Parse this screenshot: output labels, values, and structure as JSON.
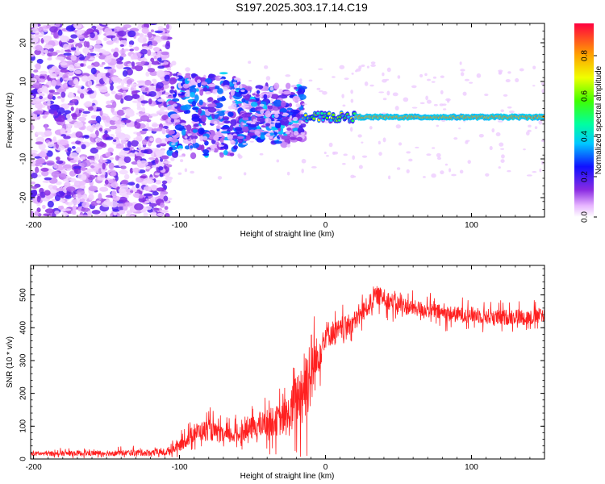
{
  "figure_title": "S197.2025.303.17.14.C19",
  "chart_data": [
    {
      "type": "heatmap",
      "name": "spectrogram",
      "xlabel": "Height of straight line (km)",
      "ylabel": "Frequency (Hz)",
      "xlim": [
        -202,
        150
      ],
      "ylim": [
        -25,
        25
      ],
      "xticks": [
        -200,
        -100,
        0,
        100
      ],
      "yticks": [
        -20,
        -10,
        0,
        10,
        20
      ],
      "colorbar": {
        "label": "Normalized spectral amplitude",
        "range": [
          0,
          0.96
        ],
        "ticks": [
          "0.0",
          "0.2",
          "0.4",
          "0.6",
          "0.8"
        ]
      },
      "ridge": {
        "x_start": -15,
        "x_end": 150,
        "frequency_hz": 0.8,
        "amplitude": 0.9
      },
      "regions": [
        {
          "x_range": [
            -202,
            -107
          ],
          "frequency_range": [
            -25,
            25
          ],
          "amplitude": 0.15,
          "description": "broadband noise"
        },
        {
          "x_range": [
            -107,
            -15
          ],
          "frequency_range": [
            -8,
            10
          ],
          "amplitude": 0.35,
          "description": "scattered energy"
        }
      ]
    },
    {
      "type": "line",
      "name": "snr",
      "xlabel": "Height of straight line (km)",
      "ylabel": "SNR (10 * v/v)",
      "xlim": [
        -202,
        150
      ],
      "ylim": [
        0,
        590
      ],
      "xticks": [
        -200,
        -100,
        0,
        100
      ],
      "yticks": [
        0,
        100,
        200,
        300,
        400,
        500
      ],
      "color": "#ff2020",
      "series": [
        {
          "name": "SNR",
          "x": [
            -202,
            -150,
            -110,
            -100,
            -90,
            -80,
            -70,
            -60,
            -50,
            -40,
            -30,
            -25,
            -20,
            -15,
            -10,
            -5,
            0,
            10,
            20,
            30,
            35,
            40,
            50,
            60,
            70,
            80,
            90,
            100,
            110,
            120,
            130,
            140,
            150
          ],
          "mean": [
            16,
            18,
            20,
            40,
            80,
            90,
            70,
            75,
            95,
            110,
            120,
            130,
            180,
            220,
            270,
            310,
            380,
            390,
            420,
            470,
            500,
            490,
            470,
            460,
            455,
            445,
            440,
            440,
            435,
            430,
            435,
            430,
            440
          ],
          "spread": [
            10,
            12,
            15,
            25,
            40,
            45,
            35,
            40,
            50,
            60,
            70,
            90,
            120,
            150,
            180,
            80,
            60,
            50,
            45,
            45,
            40,
            40,
            40,
            35,
            35,
            35,
            35,
            35,
            35,
            35,
            35,
            35,
            35
          ]
        }
      ]
    }
  ]
}
